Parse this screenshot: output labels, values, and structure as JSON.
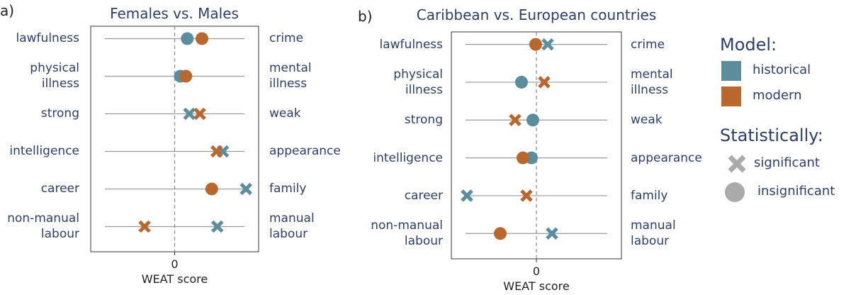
{
  "chart_data": [
    {
      "type": "scatter",
      "panel_label": "a)",
      "title": "Females vs. Males",
      "xlabel": "WEAT score",
      "categories": [
        "lawfulness",
        "physical illness",
        "strong",
        "intelligence",
        "career",
        "non-manual labour"
      ],
      "right_categories": [
        "crime",
        "mental illness",
        "weak",
        "appearance",
        "family",
        "manual labour"
      ],
      "xlim": [
        -1.2,
        1.2
      ],
      "xticks": [
        0
      ],
      "series": [
        {
          "name": "historical",
          "color": "#5b8d9c",
          "values": [
            0.18,
            0.08,
            0.21,
            0.69,
            1.02,
            0.61
          ],
          "markers": [
            "circle",
            "circle",
            "x",
            "x",
            "x",
            "x"
          ]
        },
        {
          "name": "modern",
          "color": "#b8672e",
          "values": [
            0.39,
            0.16,
            0.36,
            0.6,
            0.53,
            -0.43
          ],
          "markers": [
            "circle",
            "circle",
            "x",
            "x",
            "circle",
            "x"
          ]
        }
      ]
    },
    {
      "type": "scatter",
      "panel_label": "b)",
      "title": "Caribbean vs. European countries",
      "xlabel": "WEAT score",
      "categories": [
        "lawfulness",
        "physical illness",
        "strong",
        "intelligence",
        "career",
        "non-manual labour"
      ],
      "right_categories": [
        "crime",
        "mental illness",
        "weak",
        "appearance",
        "family",
        "manual labour"
      ],
      "xlim": [
        -1.2,
        1.2
      ],
      "xticks": [
        0
      ],
      "series": [
        {
          "name": "historical",
          "color": "#5b8d9c",
          "values": [
            0.16,
            -0.21,
            -0.05,
            -0.07,
            -0.98,
            0.22
          ],
          "markers": [
            "x",
            "circle",
            "circle",
            "circle",
            "x",
            "x"
          ]
        },
        {
          "name": "modern",
          "color": "#b8672e",
          "values": [
            -0.01,
            0.11,
            -0.3,
            -0.19,
            -0.14,
            -0.51
          ],
          "markers": [
            "circle",
            "x",
            "x",
            "circle",
            "x",
            "circle"
          ]
        }
      ]
    }
  ],
  "legend": {
    "title": "Model:",
    "marker_title": "Statistically:",
    "marker_color": "#aaaaaa",
    "markers": [
      {
        "label": "significant",
        "marker": "x"
      },
      {
        "label": "insignificant",
        "marker": "circle"
      }
    ]
  }
}
